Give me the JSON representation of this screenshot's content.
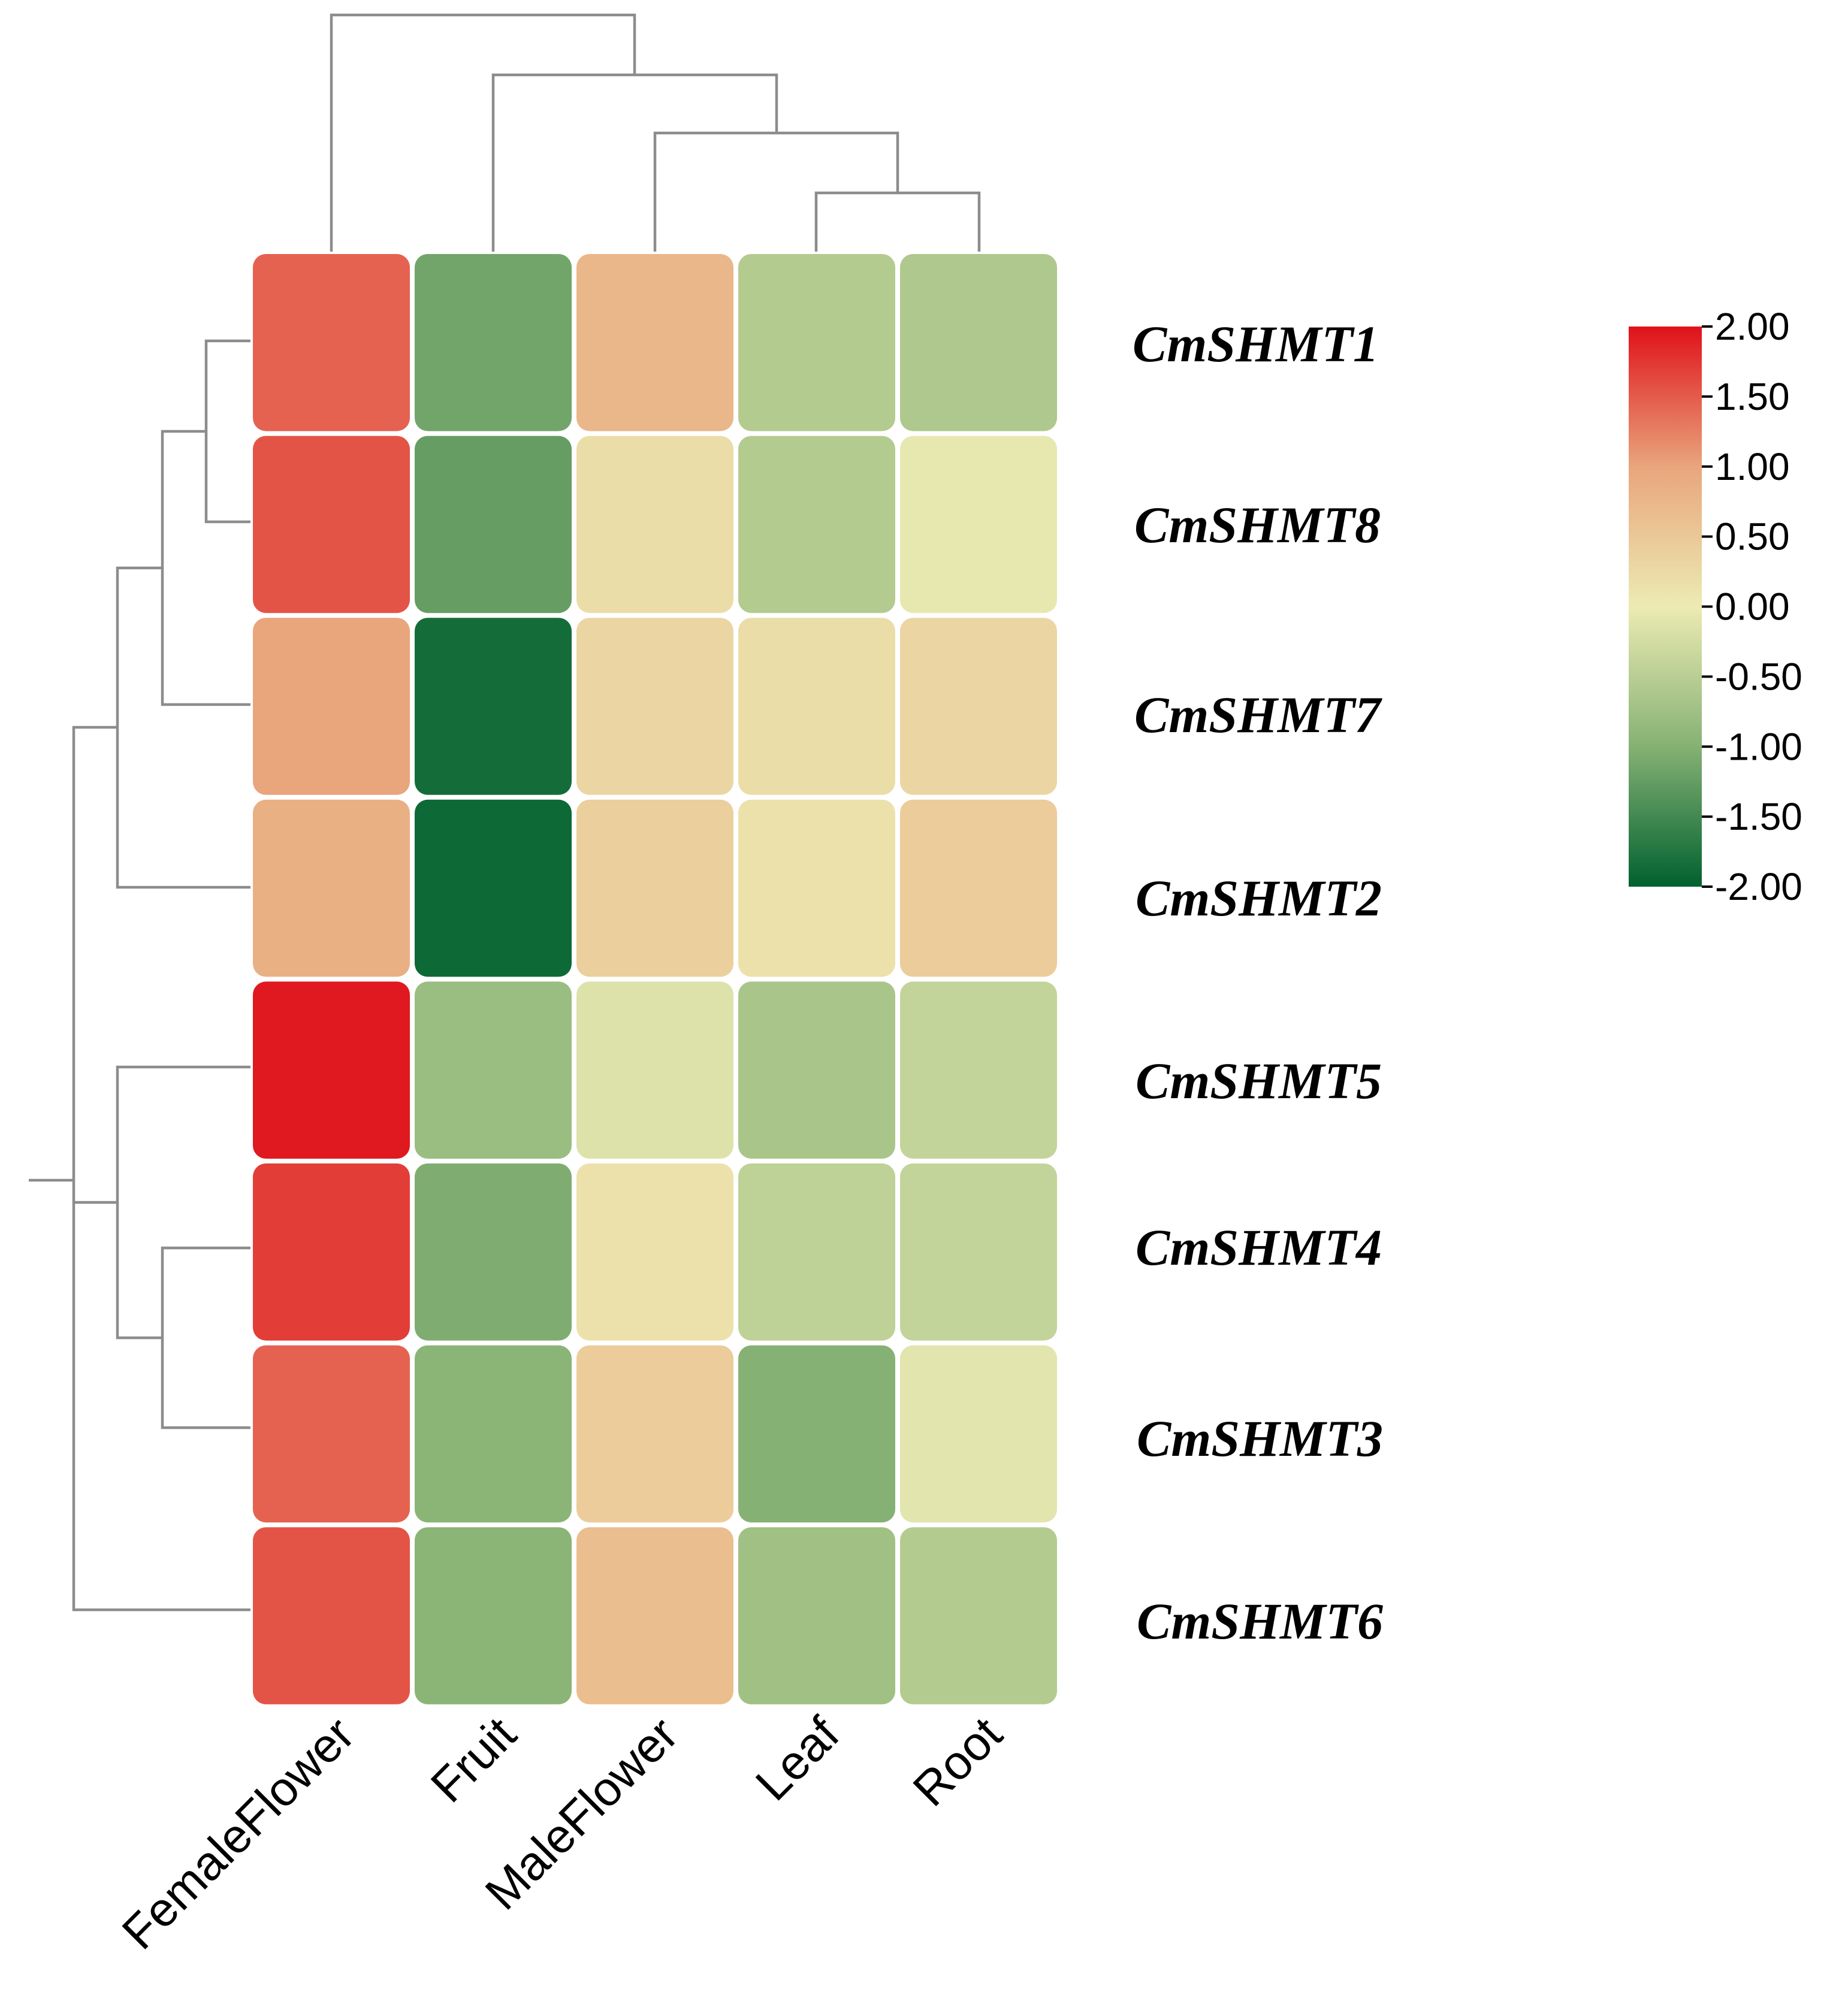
{
  "chart_data": {
    "type": "heatmap",
    "title": "",
    "rows": [
      "CmSHMT1",
      "CmSHMT8",
      "CmSHMT7",
      "CmSHMT2",
      "CmSHMT5",
      "CmSHMT4",
      "CmSHMT3",
      "CmSHMT6"
    ],
    "columns": [
      "FemaleFlower",
      "Fruit",
      "MaleFlower",
      "Leaf",
      "Root"
    ],
    "values": [
      [
        1.45,
        -1.15,
        0.75,
        -0.55,
        -0.6
      ],
      [
        1.55,
        -1.25,
        0.2,
        -0.55,
        -0.05
      ],
      [
        1.0,
        -1.85,
        0.3,
        0.2,
        0.3
      ],
      [
        0.85,
        -1.9,
        0.4,
        0.15,
        0.45
      ],
      [
        1.95,
        -0.8,
        -0.15,
        -0.65,
        -0.4
      ],
      [
        1.7,
        -1.05,
        0.15,
        -0.45,
        -0.4
      ],
      [
        1.45,
        -0.95,
        0.45,
        -1.0,
        -0.1
      ],
      [
        1.55,
        -0.95,
        0.65,
        -0.75,
        -0.55
      ]
    ],
    "colorbar": {
      "min": -2.0,
      "max": 2.0,
      "ticks": [
        "2.00",
        "1.50",
        "1.00",
        "0.50",
        "0.00",
        "-0.50",
        "-1.00",
        "-1.50",
        "-2.00"
      ],
      "low_color": "#00612f",
      "mid_color": "#ecebb3",
      "high_color": "#e0111a"
    },
    "legend": "right",
    "dendrogram_rows": true,
    "dendrogram_columns": true
  }
}
